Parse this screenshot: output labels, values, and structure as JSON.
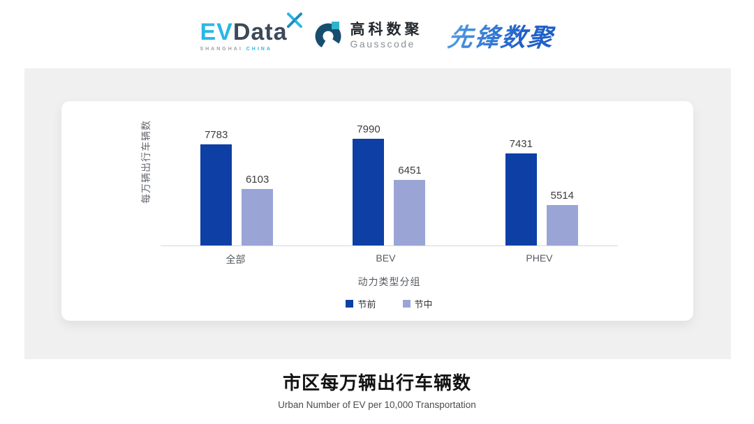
{
  "header": {
    "evdata": {
      "ev": "EV",
      "data": "Data",
      "sub_left": "SHANGHAI",
      "sub_right": "CHINA"
    },
    "gausscode": {
      "cn": "高科数聚",
      "en": "Gausscode"
    },
    "pioneer": {
      "text": "先锋数聚"
    }
  },
  "chart_data": {
    "type": "bar",
    "categories": [
      "全部",
      "BEV",
      "PHEV"
    ],
    "series": [
      {
        "name": "节前",
        "color": "#0d3fa5",
        "values": [
          7783,
          7990,
          7431
        ]
      },
      {
        "name": "节中",
        "color": "#9aa5d6",
        "values": [
          6103,
          6451,
          5514
        ]
      }
    ],
    "xlabel": "动力类型分组",
    "ylabel": "每万辆出行车辆数",
    "ylim": [
      4000,
      8200
    ],
    "grid": false,
    "legend_position": "bottom",
    "value_labels": true
  },
  "footer": {
    "title": "市区每万辆出行车辆数",
    "subtitle": "Urban Number of EV per 10,000 Transportation"
  }
}
